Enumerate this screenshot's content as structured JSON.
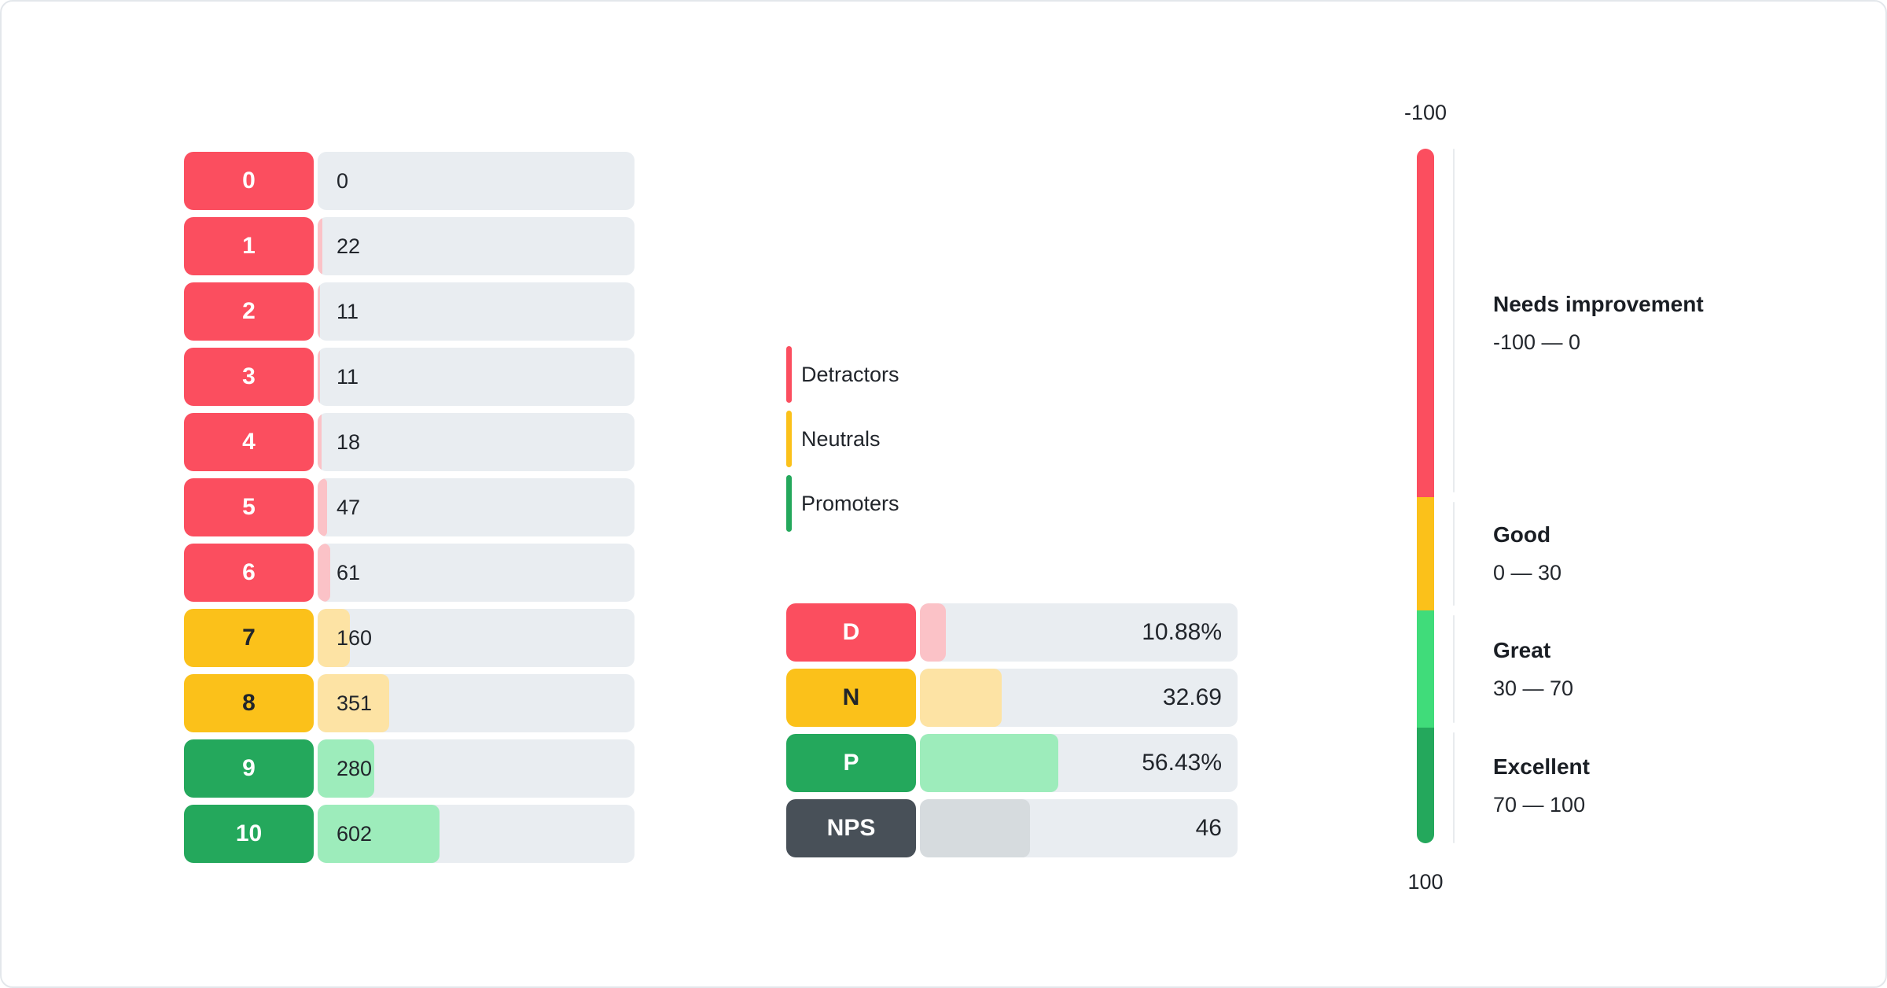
{
  "colors": {
    "detractor": "#FB4E5F",
    "detractor_light": "#FBC2C7",
    "neutral": "#FBC11A",
    "neutral_light": "#FDE3A4",
    "promoter": "#24A85C",
    "promoter_light": "#9DECBB",
    "great": "#40DC7A",
    "nps": "#485058",
    "nps_light": "#D6DBDE",
    "track": "#E9EDF1",
    "axis_line": "#E8EBEE",
    "text_dark": "#21252B",
    "text_light": "#FFFFFF"
  },
  "score_chart": {
    "rows": [
      {
        "score": "0",
        "count": 0,
        "category": "detractor"
      },
      {
        "score": "1",
        "count": 22,
        "category": "detractor"
      },
      {
        "score": "2",
        "count": 11,
        "category": "detractor"
      },
      {
        "score": "3",
        "count": 11,
        "category": "detractor"
      },
      {
        "score": "4",
        "count": 18,
        "category": "detractor"
      },
      {
        "score": "5",
        "count": 47,
        "category": "detractor"
      },
      {
        "score": "6",
        "count": 61,
        "category": "detractor"
      },
      {
        "score": "7",
        "count": 160,
        "category": "neutral"
      },
      {
        "score": "8",
        "count": 351,
        "category": "neutral"
      },
      {
        "score": "9",
        "count": 280,
        "category": "promoter"
      },
      {
        "score": "10",
        "count": 602,
        "category": "promoter"
      }
    ]
  },
  "legend": {
    "items": [
      {
        "label": "Detractors",
        "category": "detractor"
      },
      {
        "label": "Neutrals",
        "category": "neutral"
      },
      {
        "label": "Promoters",
        "category": "promoter"
      }
    ]
  },
  "summary": {
    "rows": [
      {
        "label": "D",
        "value": "10.88%",
        "category": "detractor",
        "fill_pct": 8.1
      },
      {
        "label": "N",
        "value": "32.69",
        "category": "neutral",
        "fill_pct": 25.8
      },
      {
        "label": "P",
        "value": "56.43%",
        "category": "promoter",
        "fill_pct": 43.5
      },
      {
        "label": "NPS",
        "value": "46",
        "category": "nps",
        "fill_pct": 34.7
      }
    ]
  },
  "gauge": {
    "top_label": "-100",
    "bottom_label": "100",
    "zones": [
      {
        "title": "Needs improvement",
        "range": "-100 — 0",
        "color_key": "detractor",
        "height_pct": 50.2
      },
      {
        "title": "Good",
        "range": "0 — 30",
        "color_key": "neutral",
        "height_pct": 16.3
      },
      {
        "title": "Great",
        "range": "30 — 70",
        "color_key": "great",
        "height_pct": 16.9
      },
      {
        "title": "Excellent",
        "range": "70 — 100",
        "color_key": "promoter",
        "height_pct": 16.6
      }
    ]
  },
  "chart_data": [
    {
      "type": "bar",
      "orientation": "horizontal",
      "title": "NPS score distribution",
      "categories": [
        "0",
        "1",
        "2",
        "3",
        "4",
        "5",
        "6",
        "7",
        "8",
        "9",
        "10"
      ],
      "values": [
        0,
        22,
        11,
        11,
        18,
        47,
        61,
        160,
        351,
        280,
        602
      ],
      "groups": {
        "detractors": "scores 0-6",
        "neutrals": "scores 7-8",
        "promoters": "scores 9-10"
      },
      "legend_entries": [
        "Detractors",
        "Neutrals",
        "Promoters"
      ]
    },
    {
      "type": "bar",
      "orientation": "horizontal",
      "title": "NPS summary",
      "categories": [
        "D",
        "N",
        "P",
        "NPS"
      ],
      "values": [
        10.88,
        32.69,
        56.43,
        46
      ],
      "value_labels": [
        "10.88%",
        "32.69",
        "56.43%",
        "46"
      ]
    },
    {
      "type": "gauge",
      "title": "NPS scale",
      "axis_range": [
        -100,
        100
      ],
      "zones": [
        {
          "label": "Needs improvement",
          "from": -100,
          "to": 0
        },
        {
          "label": "Good",
          "from": 0,
          "to": 30
        },
        {
          "label": "Great",
          "from": 30,
          "to": 70
        },
        {
          "label": "Excellent",
          "from": 70,
          "to": 100
        }
      ]
    }
  ]
}
